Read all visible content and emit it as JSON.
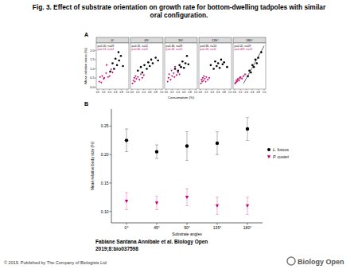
{
  "figure_title": [
    "Fig. 3. Effect of substrate orientation on growth rate for bottom-dwelling tadpoles with similar",
    "oral configuration."
  ],
  "chart_data": [
    {
      "type": "scatter",
      "panel_label": "A",
      "x_label": "Consumption (%)",
      "y_label": "Mean relative mass (%)",
      "grid": false,
      "xlim": [
        -0.05,
        1.05
      ],
      "xticks": [
        {
          "value": 0,
          "label": "0.0"
        },
        0.2,
        0.4,
        0.6,
        0.8,
        {
          "value": 1,
          "label": "1.0"
        }
      ],
      "ylim": [
        -0.1,
        2.4
      ],
      "yticks": [
        {
          "value": 0,
          "label": "0.0"
        },
        0.5,
        {
          "value": 1,
          "label": "1.0"
        },
        1.5,
        {
          "value": 2,
          "label": "2.0"
        }
      ],
      "facets": [
        {
          "title": "0°",
          "annotations": [
            {
              "text": "p=0.20, n=09",
              "color": "#000000"
            },
            {
              "text": "p=0.13, n=12",
              "color": "#c8006e"
            }
          ],
          "series": [
            {
              "name": "L. fuscus",
              "color": "#000000",
              "marker": "circle",
              "x": [
                0.42,
                0.5,
                0.55,
                0.6,
                0.65,
                0.7,
                0.72,
                0.78,
                0.85
              ],
              "values": [
                0.85,
                1.3,
                1.0,
                1.55,
                1.2,
                1.9,
                1.45,
                1.7,
                1.15
              ]
            },
            {
              "name": "P. cuvieri",
              "color": "#c8006e",
              "marker": "triangle-down",
              "x": [
                0.05,
                0.08,
                0.12,
                0.15,
                0.2,
                0.22,
                0.28,
                0.3,
                0.35,
                0.4,
                0.45,
                0.5
              ],
              "values": [
                0.3,
                0.55,
                0.25,
                0.6,
                0.45,
                0.5,
                0.75,
                1.2,
                0.55,
                0.6,
                0.95,
                0.8
              ]
            }
          ]
        },
        {
          "title": "45°",
          "annotations": [
            {
              "text": "p=0.31, n=11",
              "color": "#000000"
            },
            {
              "text": "p=0.60, n=11",
              "color": "#c8006e"
            }
          ],
          "series": [
            {
              "name": "L. fuscus",
              "color": "#000000",
              "marker": "circle",
              "x": [
                0.2,
                0.3,
                0.35,
                0.42,
                0.5,
                0.55,
                0.6,
                0.65,
                0.7,
                0.8,
                0.88
              ],
              "values": [
                0.9,
                1.1,
                0.8,
                1.2,
                1.0,
                1.35,
                1.15,
                1.5,
                1.3,
                1.6,
                1.45
              ]
            },
            {
              "name": "P. cuvieri",
              "color": "#c8006e",
              "marker": "triangle-down",
              "x": [
                0.02,
                0.05,
                0.08,
                0.1,
                0.12,
                0.15,
                0.2,
                0.25,
                0.3,
                0.35,
                0.4
              ],
              "values": [
                0.2,
                0.35,
                0.5,
                0.3,
                0.6,
                0.45,
                0.55,
                0.4,
                0.7,
                0.5,
                0.65
              ]
            }
          ]
        },
        {
          "title": "90°",
          "annotations": [
            {
              "text": "p=0.36, n=09",
              "color": "#000000"
            },
            {
              "text": "p=0.43, n=12",
              "color": "#c8006e"
            }
          ],
          "series": [
            {
              "name": "L. fuscus",
              "color": "#000000",
              "marker": "circle",
              "x": [
                0.3,
                0.4,
                0.45,
                0.5,
                0.55,
                0.6,
                0.65,
                0.7,
                0.75
              ],
              "values": [
                1.0,
                0.9,
                1.2,
                1.1,
                1.4,
                1.05,
                1.3,
                1.7,
                1.25
              ]
            },
            {
              "name": "P. cuvieri",
              "color": "#c8006e",
              "marker": "triangle-down",
              "x": [
                0.05,
                0.08,
                0.1,
                0.15,
                0.18,
                0.2,
                0.25,
                0.28,
                0.3,
                0.35,
                0.4,
                0.45
              ],
              "values": [
                0.3,
                0.5,
                0.7,
                0.4,
                0.9,
                0.6,
                0.75,
                0.55,
                1.1,
                0.65,
                0.8,
                0.7
              ]
            }
          ]
        },
        {
          "title": "135°",
          "annotations": [
            {
              "text": "p=0.80, n=10",
              "color": "#000000"
            },
            {
              "text": "p=0.20, n=11",
              "color": "#c8006e"
            }
          ],
          "series": [
            {
              "name": "L. fuscus",
              "color": "#000000",
              "marker": "circle",
              "x": [
                0.35,
                0.45,
                0.5,
                0.55,
                0.6,
                0.65,
                0.7,
                0.75,
                0.8,
                0.9
              ],
              "values": [
                1.2,
                1.0,
                1.4,
                1.15,
                1.3,
                1.05,
                1.5,
                1.25,
                1.35,
                1.1
              ]
            },
            {
              "name": "P. cuvieri",
              "color": "#c8006e",
              "marker": "triangle-down",
              "x": [
                0.02,
                0.04,
                0.06,
                0.08,
                0.1,
                0.12,
                0.15,
                0.18,
                0.2,
                0.25,
                0.3
              ],
              "values": [
                0.2,
                0.4,
                0.3,
                0.5,
                0.35,
                0.6,
                0.45,
                0.3,
                0.55,
                0.4,
                0.5
              ]
            }
          ]
        },
        {
          "title": "180°",
          "annotations": [
            {
              "text": "p=0.02, n=09",
              "color": "#000000"
            },
            {
              "text": "p=0.009, n=12",
              "color": "#c8006e"
            }
          ],
          "series": [
            {
              "name": "L. fuscus",
              "color": "#000000",
              "marker": "circle",
              "x": [
                0.45,
                0.5,
                0.55,
                0.6,
                0.65,
                0.7,
                0.75,
                0.8,
                0.9
              ],
              "values": [
                0.6,
                0.9,
                0.8,
                1.2,
                1.1,
                1.5,
                1.3,
                1.6,
                1.9
              ],
              "trend": {
                "x": [
                  0.3,
                  1.0
                ],
                "values": [
                  0.2,
                  2.25
                ]
              }
            },
            {
              "name": "P. cuvieri",
              "color": "#c8006e",
              "marker": "triangle-down",
              "x": [
                0.02,
                0.04,
                0.06,
                0.08,
                0.1,
                0.12,
                0.15,
                0.18,
                0.2,
                0.25,
                0.3,
                0.35
              ],
              "values": [
                0.2,
                0.25,
                0.35,
                0.3,
                0.4,
                0.45,
                0.35,
                0.5,
                0.55,
                0.45,
                0.6,
                0.7
              ],
              "trend": {
                "x": [
                  0.0,
                  0.4
                ],
                "values": [
                  0.2,
                  0.72
                ]
              }
            }
          ]
        }
      ]
    },
    {
      "type": "scatter",
      "panel_label": "B",
      "x_label": "Substrate angles",
      "y_label": "Mean relative body size (%)",
      "grid": false,
      "legend": "right",
      "categories": [
        "0°",
        "45°",
        "90°",
        "135°",
        "180°"
      ],
      "ylim": [
        0.08,
        0.28
      ],
      "yticks": [
        {
          "value": 0.1,
          "label": "0.10"
        },
        0.15,
        {
          "value": 0.2,
          "label": "0.20"
        },
        0.25
      ],
      "series": [
        {
          "name": "L. fuscus",
          "color": "#000000",
          "marker": "circle",
          "values": [
            0.225,
            0.205,
            0.215,
            0.22,
            0.245
          ],
          "errors": [
            0.02,
            0.012,
            0.025,
            0.02,
            0.02
          ]
        },
        {
          "name": "P. cuvieri",
          "color": "#c8006e",
          "marker": "triangle-down",
          "values": [
            0.118,
            0.115,
            0.125,
            0.11,
            0.11
          ],
          "errors": [
            0.015,
            0.012,
            0.015,
            0.015,
            0.015
          ]
        }
      ]
    }
  ],
  "citation": [
    "Fabiane Santana Annibale et al. Biology Open",
    "2019;8:bio037598"
  ],
  "copyright": "© 2019. Published by The Company of Biologists Ltd",
  "logo": "Biology Open"
}
